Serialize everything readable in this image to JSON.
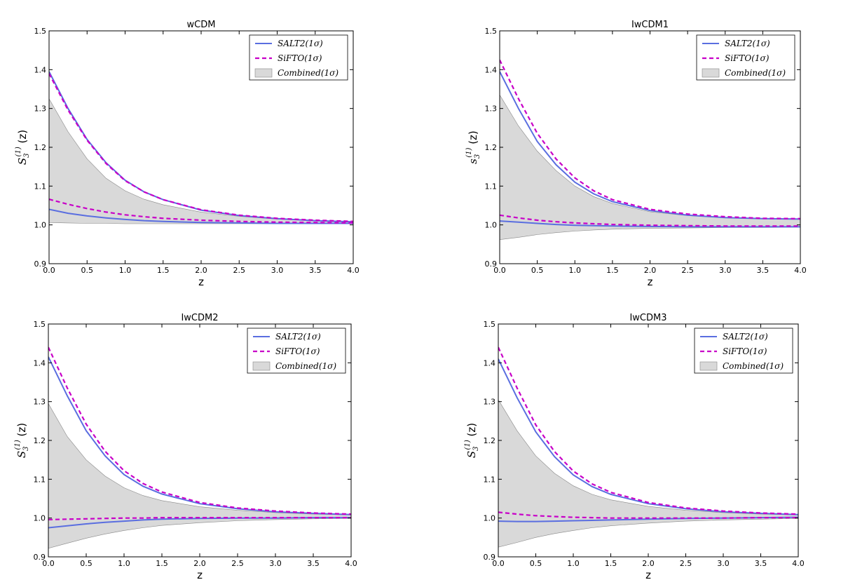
{
  "figure": {
    "colors": {
      "salt2": "#5a6ee0",
      "sifto": "#c800c8",
      "band_fill": "#d9d9d9",
      "band_edge": "#888888"
    }
  },
  "chart_data": [
    {
      "type": "line",
      "title": "wCDM",
      "xlabel": "z",
      "ylabel": "S",
      "ylabel_sub": "3",
      "ylabel_sup": "(1)",
      "ylabel_arg": "(z)",
      "xlim": [
        0,
        4
      ],
      "ylim": [
        0.9,
        1.5
      ],
      "xticks": [
        "0.0",
        "0.5",
        "1.0",
        "1.5",
        "2.0",
        "2.5",
        "3.0",
        "3.5",
        "4.0"
      ],
      "yticks": [
        "0.9",
        "1.0",
        "1.1",
        "1.2",
        "1.3",
        "1.4",
        "1.5"
      ],
      "legend": [
        "SALT2(1σ)",
        "SiFTO(1σ)",
        "Combined(1σ)"
      ],
      "series": [
        {
          "name": "SALT2(1σ)",
          "style": "solid",
          "bound": "upper",
          "x": [
            0,
            0.25,
            0.5,
            0.75,
            1,
            1.25,
            1.5,
            2,
            2.5,
            3,
            3.5,
            4
          ],
          "y": [
            1.395,
            1.3,
            1.22,
            1.16,
            1.115,
            1.085,
            1.065,
            1.038,
            1.024,
            1.016,
            1.011,
            1.008
          ]
        },
        {
          "name": "SALT2(1σ)",
          "style": "solid",
          "bound": "lower",
          "x": [
            0,
            0.25,
            0.5,
            0.75,
            1,
            1.25,
            1.5,
            2,
            2.5,
            3,
            3.5,
            4
          ],
          "y": [
            1.04,
            1.03,
            1.023,
            1.018,
            1.014,
            1.011,
            1.009,
            1.006,
            1.005,
            1.004,
            1.004,
            1.004
          ]
        },
        {
          "name": "SiFTO(1σ)",
          "style": "dashed",
          "bound": "upper",
          "x": [
            0,
            0.25,
            0.5,
            0.75,
            1,
            1.25,
            1.5,
            2,
            2.5,
            3,
            3.5,
            4
          ],
          "y": [
            1.39,
            1.296,
            1.218,
            1.158,
            1.114,
            1.085,
            1.065,
            1.039,
            1.025,
            1.017,
            1.012,
            1.009
          ]
        },
        {
          "name": "SiFTO(1σ)",
          "style": "dashed",
          "bound": "lower",
          "x": [
            0,
            0.25,
            0.5,
            0.75,
            1,
            1.25,
            1.5,
            2,
            2.5,
            3,
            3.5,
            4
          ],
          "y": [
            1.066,
            1.053,
            1.042,
            1.033,
            1.026,
            1.021,
            1.017,
            1.012,
            1.009,
            1.007,
            1.006,
            1.005
          ]
        }
      ],
      "band": {
        "name": "Combined(1σ)",
        "x": [
          0,
          0.25,
          0.5,
          0.75,
          1,
          1.25,
          1.5,
          2,
          2.5,
          3,
          3.5,
          4
        ],
        "upper": [
          1.325,
          1.24,
          1.17,
          1.12,
          1.088,
          1.066,
          1.052,
          1.033,
          1.022,
          1.015,
          1.011,
          1.008
        ],
        "lower": [
          1.006,
          1.005,
          1.004,
          1.004,
          1.003,
          1.003,
          1.003,
          1.003,
          1.003,
          1.003,
          1.003,
          1.003
        ]
      }
    },
    {
      "type": "line",
      "title": "IwCDM1",
      "xlabel": "z",
      "ylabel": "s",
      "ylabel_sub": "3",
      "ylabel_sup": "(1)",
      "ylabel_arg": "(z)",
      "xlim": [
        0,
        4
      ],
      "ylim": [
        0.9,
        1.5
      ],
      "xticks": [
        "0.0",
        "0.5",
        "1.0",
        "1.5",
        "2.0",
        "2.5",
        "3.0",
        "3.5",
        "4.0"
      ],
      "yticks": [
        "0.9",
        "1.0",
        "1.1",
        "1.2",
        "1.3",
        "1.4",
        "1.5"
      ],
      "legend": [
        "SALT2(1σ)",
        "SiFTO(1σ)",
        "Combined(1σ)"
      ],
      "series": [
        {
          "name": "SALT2(1σ)",
          "style": "solid",
          "bound": "upper",
          "x": [
            0,
            0.25,
            0.5,
            0.75,
            1,
            1.25,
            1.5,
            2,
            2.5,
            3,
            3.5,
            4
          ],
          "y": [
            1.395,
            1.3,
            1.215,
            1.155,
            1.11,
            1.08,
            1.06,
            1.037,
            1.025,
            1.019,
            1.016,
            1.015
          ]
        },
        {
          "name": "SALT2(1σ)",
          "style": "solid",
          "bound": "lower",
          "x": [
            0,
            0.25,
            0.5,
            0.75,
            1,
            1.25,
            1.5,
            2,
            2.5,
            3,
            3.5,
            4
          ],
          "y": [
            1.01,
            1.007,
            1.004,
            1.001,
            0.999,
            0.998,
            0.997,
            0.996,
            0.995,
            0.995,
            0.995,
            0.995
          ]
        },
        {
          "name": "SiFTO(1σ)",
          "style": "dashed",
          "bound": "upper",
          "x": [
            0,
            0.25,
            0.5,
            0.75,
            1,
            1.25,
            1.5,
            2,
            2.5,
            3,
            3.5,
            4
          ],
          "y": [
            1.425,
            1.325,
            1.236,
            1.17,
            1.121,
            1.088,
            1.065,
            1.04,
            1.028,
            1.021,
            1.017,
            1.016
          ]
        },
        {
          "name": "SiFTO(1σ)",
          "style": "dashed",
          "bound": "lower",
          "x": [
            0,
            0.25,
            0.5,
            0.75,
            1,
            1.25,
            1.5,
            2,
            2.5,
            3,
            3.5,
            4
          ],
          "y": [
            1.025,
            1.018,
            1.012,
            1.008,
            1.005,
            1.003,
            1.001,
            0.999,
            0.998,
            0.997,
            0.997,
            0.997
          ]
        }
      ],
      "band": {
        "name": "Combined(1σ)",
        "x": [
          0,
          0.25,
          0.5,
          0.75,
          1,
          1.25,
          1.5,
          2,
          2.5,
          3,
          3.5,
          4
        ],
        "upper": [
          1.335,
          1.255,
          1.19,
          1.14,
          1.1,
          1.073,
          1.055,
          1.034,
          1.024,
          1.019,
          1.017,
          1.016
        ],
        "lower": [
          0.962,
          0.968,
          0.975,
          0.98,
          0.984,
          0.987,
          0.989,
          0.991,
          0.992,
          0.993,
          0.993,
          0.994
        ]
      }
    },
    {
      "type": "line",
      "title": "IwCDM2",
      "xlabel": "z",
      "ylabel": "S",
      "ylabel_sub": "3",
      "ylabel_sup": "(1)",
      "ylabel_arg": "(z)",
      "xlim": [
        0,
        4
      ],
      "ylim": [
        0.9,
        1.5
      ],
      "xticks": [
        "0.0",
        "0.5",
        "1.0",
        "1.5",
        "2.0",
        "2.5",
        "3.0",
        "3.5",
        "4.0"
      ],
      "yticks": [
        "0.9",
        "1.0",
        "1.1",
        "1.2",
        "1.3",
        "1.4",
        "1.5"
      ],
      "legend": [
        "SALT2(1σ)",
        "SiFTO(1σ)",
        "Combined(1σ)"
      ],
      "series": [
        {
          "name": "SALT2(1σ)",
          "style": "solid",
          "bound": "upper",
          "x": [
            0,
            0.25,
            0.5,
            0.75,
            1,
            1.25,
            1.5,
            2,
            2.5,
            3,
            3.5,
            4
          ],
          "y": [
            1.415,
            1.315,
            1.225,
            1.16,
            1.112,
            1.082,
            1.062,
            1.037,
            1.024,
            1.016,
            1.012,
            1.009
          ]
        },
        {
          "name": "SALT2(1σ)",
          "style": "solid",
          "bound": "lower",
          "x": [
            0,
            0.25,
            0.5,
            0.75,
            1,
            1.25,
            1.5,
            2,
            2.5,
            3,
            3.5,
            4
          ],
          "y": [
            0.975,
            0.98,
            0.985,
            0.989,
            0.992,
            0.995,
            0.997,
            0.999,
            1.0,
            1.0,
            1.001,
            1.001
          ]
        },
        {
          "name": "SiFTO(1σ)",
          "style": "dashed",
          "bound": "upper",
          "x": [
            0,
            0.25,
            0.5,
            0.75,
            1,
            1.25,
            1.5,
            2,
            2.5,
            3,
            3.5,
            4
          ],
          "y": [
            1.44,
            1.335,
            1.242,
            1.172,
            1.122,
            1.089,
            1.067,
            1.04,
            1.026,
            1.018,
            1.013,
            1.01
          ]
        },
        {
          "name": "SiFTO(1σ)",
          "style": "dashed",
          "bound": "lower",
          "x": [
            0,
            0.25,
            0.5,
            0.75,
            1,
            1.25,
            1.5,
            2,
            2.5,
            3,
            3.5,
            4
          ],
          "y": [
            0.996,
            0.997,
            0.998,
            0.999,
            1.0,
            1.0,
            1.001,
            1.001,
            1.001,
            1.001,
            1.001,
            1.001
          ]
        }
      ],
      "band": {
        "name": "Combined(1σ)",
        "x": [
          0,
          0.25,
          0.5,
          0.75,
          1,
          1.25,
          1.5,
          2,
          2.5,
          3,
          3.5,
          4
        ],
        "upper": [
          1.295,
          1.21,
          1.15,
          1.108,
          1.078,
          1.058,
          1.045,
          1.029,
          1.02,
          1.014,
          1.01,
          1.008
        ],
        "lower": [
          0.922,
          0.935,
          0.948,
          0.959,
          0.968,
          0.975,
          0.981,
          0.988,
          0.993,
          0.996,
          0.998,
          0.999
        ]
      }
    },
    {
      "type": "line",
      "title": "IwCDM3",
      "xlabel": "z",
      "ylabel": "S",
      "ylabel_sub": "3",
      "ylabel_sup": "(1)",
      "ylabel_arg": "(z)",
      "xlim": [
        0,
        4
      ],
      "ylim": [
        0.9,
        1.5
      ],
      "xticks": [
        "0.0",
        "0.5",
        "1.0",
        "1.5",
        "2.0",
        "2.5",
        "3.0",
        "3.5",
        "4.0"
      ],
      "yticks": [
        "0.9",
        "1.0",
        "1.1",
        "1.2",
        "1.3",
        "1.4",
        "1.5"
      ],
      "legend": [
        "SALT2(1σ)",
        "SiFTO(1σ)",
        "Combined(1σ)"
      ],
      "series": [
        {
          "name": "SALT2(1σ)",
          "style": "solid",
          "bound": "upper",
          "x": [
            0,
            0.25,
            0.5,
            0.75,
            1,
            1.25,
            1.5,
            2,
            2.5,
            3,
            3.5,
            4
          ],
          "y": [
            1.41,
            1.31,
            1.222,
            1.158,
            1.111,
            1.081,
            1.061,
            1.037,
            1.024,
            1.016,
            1.012,
            1.009
          ]
        },
        {
          "name": "SALT2(1σ)",
          "style": "solid",
          "bound": "lower",
          "x": [
            0,
            0.25,
            0.5,
            0.75,
            1,
            1.25,
            1.5,
            2,
            2.5,
            3,
            3.5,
            4
          ],
          "y": [
            0.992,
            0.991,
            0.991,
            0.992,
            0.993,
            0.994,
            0.995,
            0.997,
            0.999,
            1.0,
            1.001,
            1.002
          ]
        },
        {
          "name": "SiFTO(1σ)",
          "style": "dashed",
          "bound": "upper",
          "x": [
            0,
            0.25,
            0.5,
            0.75,
            1,
            1.25,
            1.5,
            2,
            2.5,
            3,
            3.5,
            4
          ],
          "y": [
            1.44,
            1.335,
            1.24,
            1.171,
            1.121,
            1.088,
            1.066,
            1.04,
            1.026,
            1.018,
            1.013,
            1.01
          ]
        },
        {
          "name": "SiFTO(1σ)",
          "style": "dashed",
          "bound": "lower",
          "x": [
            0,
            0.25,
            0.5,
            0.75,
            1,
            1.25,
            1.5,
            2,
            2.5,
            3,
            3.5,
            4
          ],
          "y": [
            1.015,
            1.01,
            1.006,
            1.004,
            1.002,
            1.001,
            1.0,
            1.0,
            1.0,
            1.0,
            1.001,
            1.001
          ]
        }
      ],
      "band": {
        "name": "Combined(1σ)",
        "x": [
          0,
          0.25,
          0.5,
          0.75,
          1,
          1.25,
          1.5,
          2,
          2.5,
          3,
          3.5,
          4
        ],
        "upper": [
          1.305,
          1.225,
          1.16,
          1.115,
          1.083,
          1.061,
          1.047,
          1.03,
          1.02,
          1.014,
          1.01,
          1.008
        ],
        "lower": [
          0.925,
          0.937,
          0.95,
          0.96,
          0.968,
          0.975,
          0.98,
          0.987,
          0.992,
          0.995,
          0.997,
          0.999
        ]
      }
    }
  ]
}
